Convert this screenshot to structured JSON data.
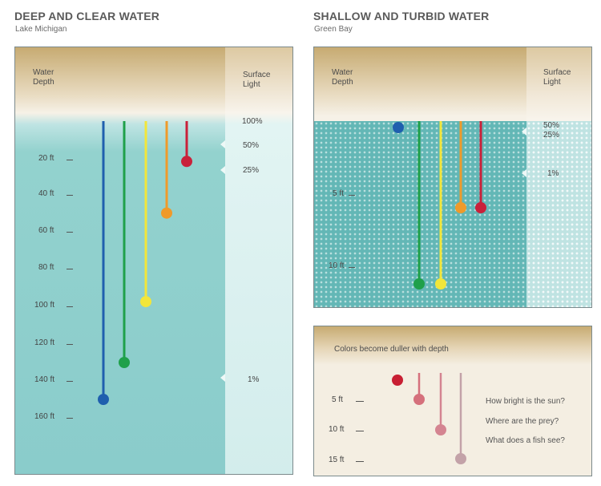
{
  "left": {
    "title": "DEEP AND CLEAR WATER",
    "subtitle": "Lake Michigan",
    "water_depth_header": "Water\nDepth",
    "surface_light_header": "Surface\nLight",
    "depth_labels": [
      "20 ft",
      "40 ft",
      "60 ft",
      "80 ft",
      "100 ft",
      "120 ft",
      "140 ft",
      "160 ft"
    ],
    "light_labels": [
      "100%",
      "50%",
      "25%",
      "1%"
    ],
    "lines": [
      {
        "color": "#1f5fae",
        "name": "blue",
        "end": 150
      },
      {
        "color": "#1fa04a",
        "name": "green",
        "end": 130
      },
      {
        "color": "#f2e63a",
        "name": "yellow",
        "end": 97
      },
      {
        "color": "#ef9a2a",
        "name": "orange",
        "end": 49
      },
      {
        "color": "#c9213a",
        "name": "red",
        "end": 21
      }
    ]
  },
  "right_top": {
    "title": "SHALLOW AND TURBID WATER",
    "subtitle": "Green Bay",
    "water_depth_header": "Water\nDepth",
    "surface_light_header": "Surface\nLight",
    "depth_labels": [
      "5 ft",
      "10 ft"
    ],
    "light_labels": [
      "50%",
      "25%",
      "1%"
    ],
    "lines": [
      {
        "color": "#1f5fae",
        "name": "blue",
        "end": 0
      },
      {
        "color": "#1fa04a",
        "name": "green",
        "end": 11
      },
      {
        "color": "#f2e63a",
        "name": "yellow",
        "end": 11
      },
      {
        "color": "#ef9a2a",
        "name": "orange",
        "end": 6
      },
      {
        "color": "#c9213a",
        "name": "red",
        "end": 6
      }
    ]
  },
  "right_bottom": {
    "title": "Colors become duller with depth",
    "depth_labels": [
      "5 ft",
      "10 ft",
      "15 ft"
    ],
    "questions": [
      "How bright is the sun?",
      "Where are the prey?",
      "What does a fish see?"
    ],
    "pins": [
      {
        "color": "#c81f33",
        "name": "red-surface"
      },
      {
        "color": "#d5707c",
        "name": "red-5ft"
      },
      {
        "color": "#d48491",
        "name": "red-10ft"
      },
      {
        "color": "#c3a2a8",
        "name": "red-15ft"
      }
    ]
  }
}
